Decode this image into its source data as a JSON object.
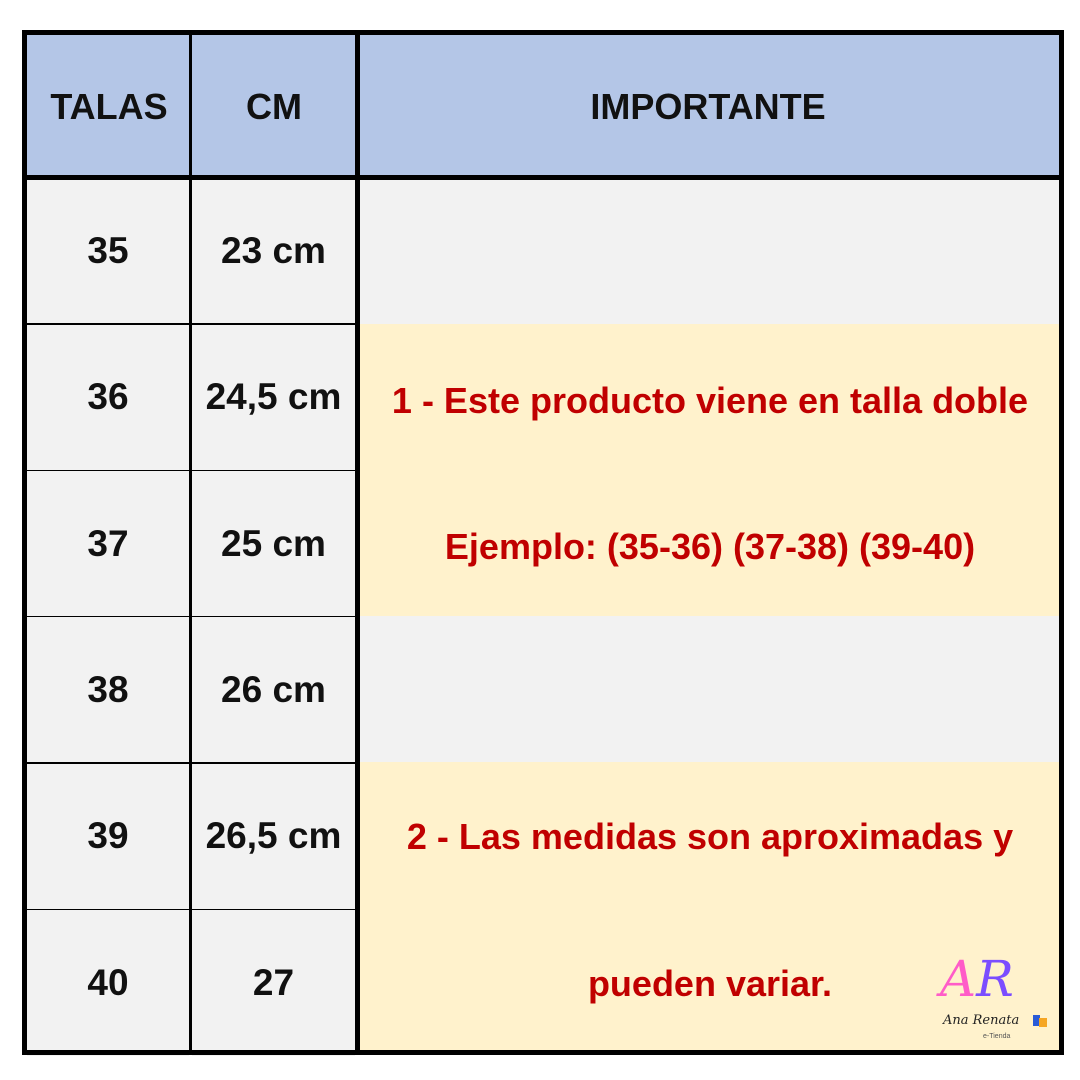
{
  "header": {
    "sizes": "TALAS",
    "cm": "CM",
    "important": "IMPORTANTE"
  },
  "rows": [
    {
      "size": "35",
      "cm": "23 cm"
    },
    {
      "size": "36",
      "cm": "24,5 cm"
    },
    {
      "size": "37",
      "cm": "25 cm"
    },
    {
      "size": "38",
      "cm": "26 cm"
    },
    {
      "size": "39",
      "cm": "26,5 cm"
    },
    {
      "size": "40",
      "cm": "27"
    }
  ],
  "notes": {
    "note1_line1": "1 - Este producto viene en talla doble",
    "note1_line2": "Ejemplo: (35-36) (37-38) (39-40)",
    "note2_line1": "2 - Las medidas son aproximadas y",
    "note2_line2": "pueden variar."
  },
  "logo": {
    "initials": "AR",
    "name": "Ana Renata",
    "tagline": "e-Tienda"
  },
  "colors": {
    "header": "#b4c6e7",
    "cell": "#f2f2f2",
    "highlight": "#fff2cc",
    "note_text": "#c00000"
  }
}
